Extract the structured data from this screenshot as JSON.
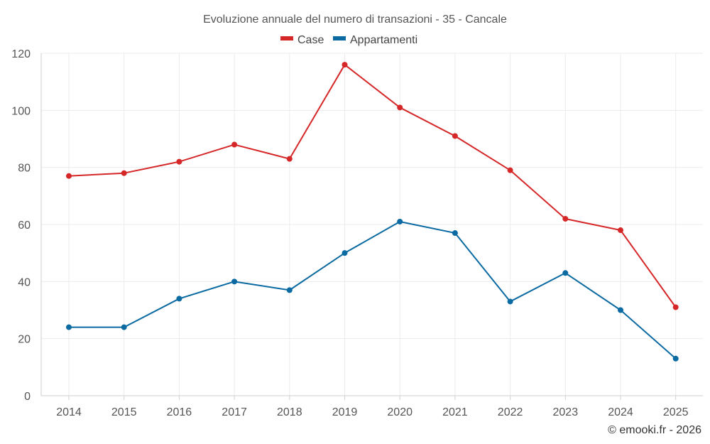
{
  "chart_data": {
    "type": "line",
    "title": "Evoluzione annuale del numero di transazioni - 35 - Cancale",
    "categories": [
      "2014",
      "2015",
      "2016",
      "2017",
      "2018",
      "2019",
      "2020",
      "2021",
      "2022",
      "2023",
      "2024",
      "2025"
    ],
    "series": [
      {
        "name": "Case",
        "color": "#d62728",
        "values": [
          77,
          78,
          82,
          88,
          83,
          116,
          101,
          91,
          79,
          62,
          58,
          31
        ]
      },
      {
        "name": "Appartamenti",
        "color": "#0a6aa1",
        "values": [
          24,
          24,
          34,
          40,
          37,
          50,
          61,
          57,
          33,
          43,
          30,
          13
        ]
      }
    ],
    "ylim": [
      0,
      120
    ],
    "yticks": [
      0,
      20,
      40,
      60,
      80,
      100,
      120
    ],
    "xlabel": "",
    "ylabel": "",
    "legend_position": "top-center",
    "grid": true
  },
  "credit": "© emooki.fr - 2026"
}
